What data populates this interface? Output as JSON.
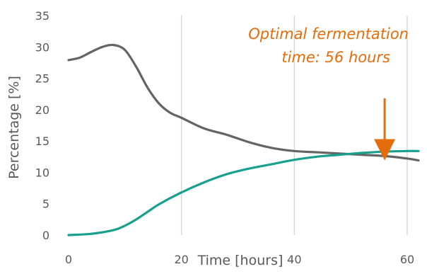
{
  "chart_data": {
    "type": "line",
    "xlabel": "Time [hours]",
    "ylabel": "Percentage [%]",
    "xlim": [
      0,
      62
    ],
    "ylim": [
      0,
      35
    ],
    "x_ticks": [
      0,
      20,
      40,
      60
    ],
    "y_ticks": [
      0,
      5,
      10,
      15,
      20,
      25,
      30,
      35
    ],
    "grid": "vertical lines at x ticks only",
    "series": [
      {
        "color": "#646464",
        "x": [
          0,
          2,
          4,
          6,
          8,
          10,
          12,
          14,
          16,
          18,
          20,
          24,
          28,
          32,
          36,
          40,
          44,
          48,
          52,
          56,
          60,
          62
        ],
        "y": [
          27.9,
          28.3,
          29.2,
          30.0,
          30.3,
          29.5,
          26.8,
          23.5,
          21.0,
          19.5,
          18.7,
          17.0,
          16.0,
          14.8,
          13.9,
          13.4,
          13.2,
          13.0,
          12.8,
          12.6,
          12.2,
          11.9
        ]
      },
      {
        "color": "#17a08e",
        "x": [
          0,
          4,
          8,
          10,
          12,
          14,
          16,
          20,
          24,
          28,
          32,
          36,
          40,
          44,
          48,
          52,
          56,
          60,
          62
        ],
        "y": [
          0,
          0.2,
          0.8,
          1.5,
          2.5,
          3.7,
          4.9,
          6.8,
          8.4,
          9.7,
          10.6,
          11.3,
          12.0,
          12.5,
          12.8,
          13.1,
          13.3,
          13.4,
          13.4
        ]
      }
    ],
    "annotation": {
      "lines": [
        "Optimal fermentation",
        "time: 56 hours"
      ],
      "color": "#e46c0a",
      "arrow_x": 56,
      "arrow_y_start": 21.8,
      "arrow_y_end": 13.6
    }
  }
}
